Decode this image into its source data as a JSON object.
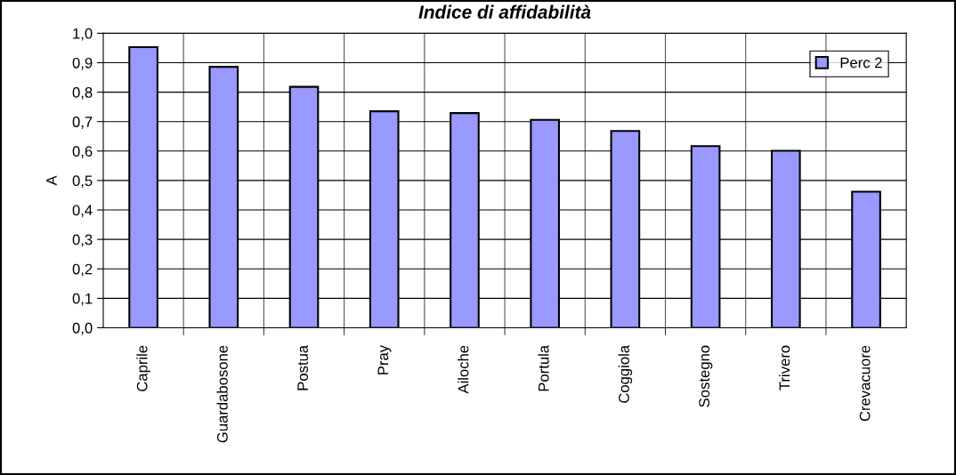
{
  "chart_data": {
    "type": "bar",
    "title": "Indice di affidabilità",
    "ylabel": "A",
    "categories": [
      "Caprile",
      "Guardabosone",
      "Postua",
      "Pray",
      "Ailoche",
      "Portula",
      "Coggiola",
      "Sostegno",
      "Trivero",
      "Crevacuore"
    ],
    "series": [
      {
        "name": "Perc 2",
        "color": "#9999ff",
        "values": [
          0.953,
          0.886,
          0.818,
          0.735,
          0.729,
          0.706,
          0.668,
          0.617,
          0.601,
          0.462
        ]
      }
    ],
    "ylim": [
      0,
      1
    ],
    "yticks": [
      {
        "value": 0,
        "label": "0,0"
      },
      {
        "value": 0.1,
        "label": "0,1"
      },
      {
        "value": 0.2,
        "label": "0,2"
      },
      {
        "value": 0.3,
        "label": "0,3"
      },
      {
        "value": 0.4,
        "label": "0,4"
      },
      {
        "value": 0.5,
        "label": "0,5"
      },
      {
        "value": 0.6,
        "label": "0,6"
      },
      {
        "value": 0.7,
        "label": "0,7"
      },
      {
        "value": 0.8,
        "label": "0,8"
      },
      {
        "value": 0.9,
        "label": "0,9"
      },
      {
        "value": 1,
        "label": "1,0"
      }
    ],
    "grid": true,
    "legend": "top right"
  }
}
